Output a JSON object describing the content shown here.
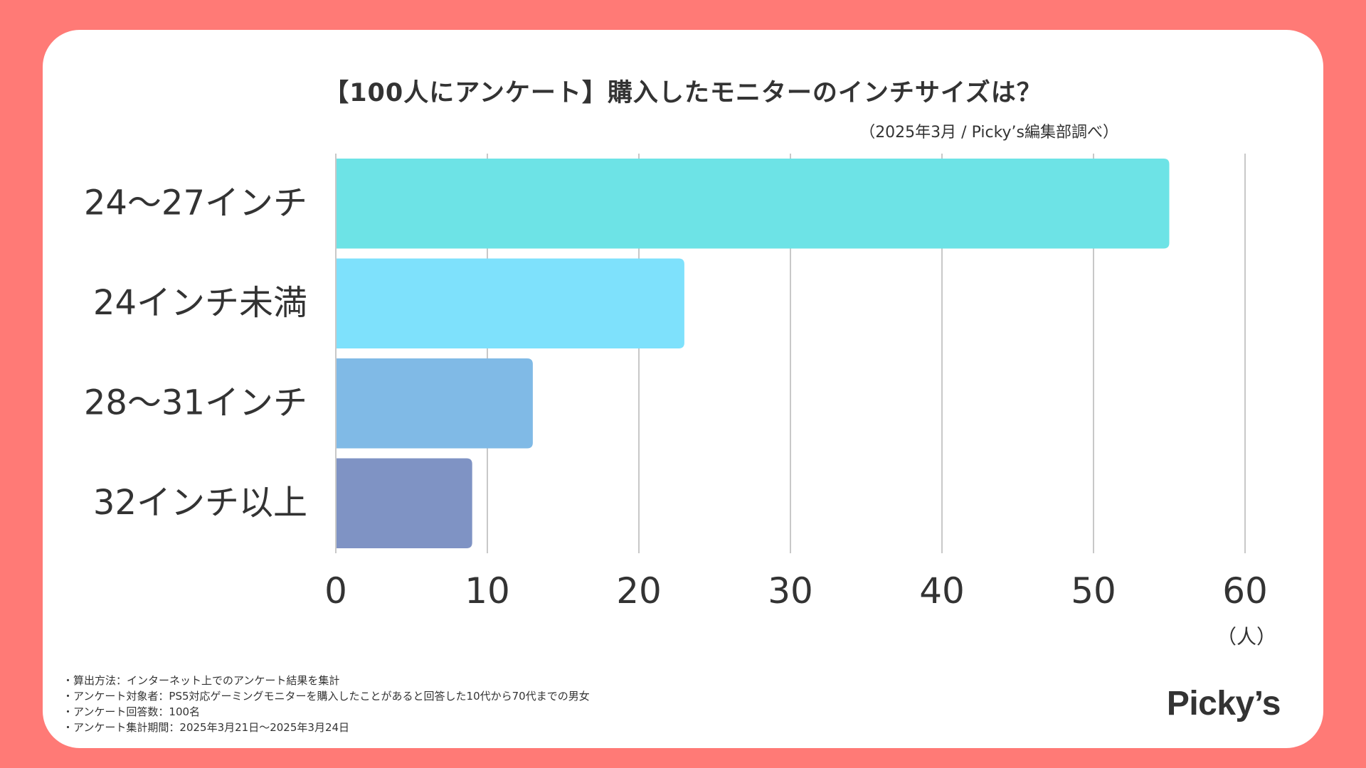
{
  "chart_data": {
    "type": "bar",
    "orientation": "horizontal",
    "title": "【100人にアンケート】購入したモニターのインチサイズは？",
    "subtitle": "（2025年3月 / Picky’s編集部調べ）",
    "categories": [
      "24〜27インチ",
      "24インチ未満",
      "28〜31インチ",
      "32インチ以上"
    ],
    "values": [
      55,
      23,
      13,
      9
    ],
    "colors": [
      "#6de3e6",
      "#7ee1fc",
      "#80bae6",
      "#7f93c4"
    ],
    "xlim": [
      0,
      60
    ],
    "xticks": [
      0,
      10,
      20,
      30,
      40,
      50,
      60
    ],
    "xlabel": "（人）",
    "ylabel": "",
    "grid": true
  },
  "notes": [
    "算出方法：インターネット上でのアンケート結果を集計",
    "アンケート対象者：PS5対応ゲーミングモニターを購入したことがあると回答した10代から70代までの男女",
    "アンケート回答数：100名",
    "アンケート集計期間：2025年3月21日〜2025年3月24日"
  ],
  "logo_text": "Picky’s",
  "colors": {
    "background": "#ff7a76",
    "card": "#ffffff",
    "text": "#333333",
    "grid": "#c8c8c8"
  }
}
